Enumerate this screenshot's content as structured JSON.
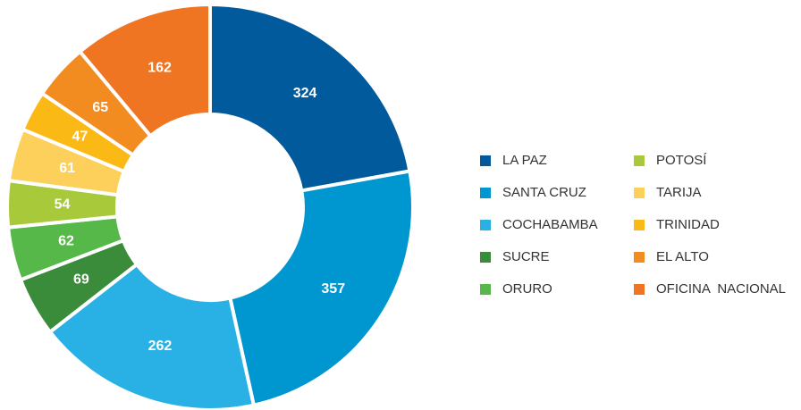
{
  "chart_data": {
    "type": "pie",
    "donut": true,
    "categories": [
      "LA PAZ",
      "SANTA CRUZ",
      "COCHABAMBA",
      "SUCRE",
      "ORURO",
      "POTOSÍ",
      "TARIJA",
      "TRINIDAD",
      "EL ALTO",
      "OFICINA  NACIONAL"
    ],
    "values": [
      324,
      357,
      262,
      69,
      62,
      54,
      61,
      47,
      65,
      162
    ],
    "colors": [
      "#005a9c",
      "#0096cf",
      "#29b1e6",
      "#3a8b3a",
      "#55b848",
      "#a8c93a",
      "#fdd05c",
      "#fbb916",
      "#f28c20",
      "#f07522"
    ],
    "legend": "right"
  }
}
